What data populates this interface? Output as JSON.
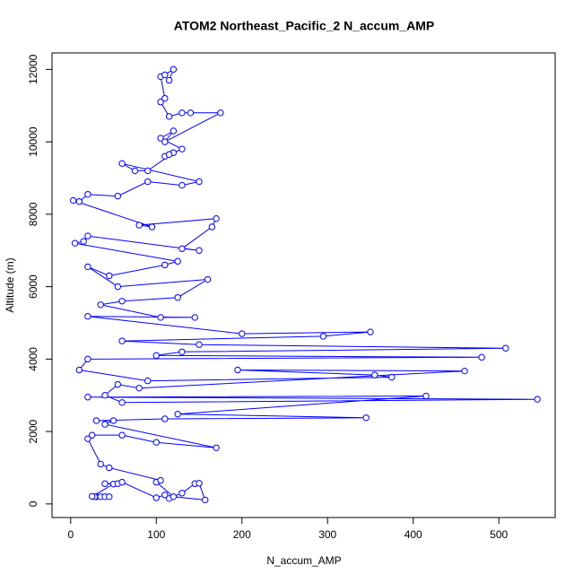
{
  "chart_data": {
    "type": "line",
    "markers": true,
    "title": "ATOM2 Northeast_Pacific_2 N_accum_AMP",
    "x_label": "N_accum_AMP",
    "y_label": "Altitude (m)",
    "x": [
      30,
      35,
      40,
      28,
      45,
      25,
      50,
      40,
      55,
      60,
      100,
      110,
      115,
      130,
      145,
      150,
      157,
      120,
      100,
      105,
      45,
      35,
      20,
      25,
      60,
      100,
      170,
      40,
      50,
      30,
      110,
      345,
      125,
      415,
      20,
      545,
      60,
      40,
      55,
      80,
      460,
      195,
      355,
      375,
      90,
      10,
      20,
      480,
      100,
      130,
      508,
      150,
      60,
      295,
      350,
      200,
      20,
      145,
      105,
      35,
      60,
      125,
      160,
      55,
      20,
      45,
      110,
      125,
      5,
      15,
      20,
      150,
      130,
      165,
      170,
      80,
      95,
      3,
      10,
      20,
      55,
      90,
      130,
      150,
      60,
      75,
      90,
      120,
      110,
      115,
      130,
      105,
      120,
      110,
      175,
      140,
      130,
      115,
      105,
      110,
      105,
      110,
      120,
      115
    ],
    "series": [
      {
        "color": "#0000ff",
        "values": [
          200,
          200,
          200,
          200,
          200,
          210,
          550,
          560,
          560,
          600,
          170,
          250,
          150,
          300,
          560,
          570,
          110,
          200,
          600,
          650,
          1000,
          1100,
          1800,
          1900,
          1900,
          1700,
          1550,
          2200,
          2300,
          2300,
          2350,
          2380,
          2480,
          2980,
          2950,
          2890,
          2800,
          3000,
          3300,
          3200,
          3670,
          3700,
          3560,
          3500,
          3400,
          3700,
          4000,
          4050,
          4100,
          4200,
          4300,
          4400,
          4500,
          4630,
          4750,
          4700,
          5180,
          5150,
          5150,
          5500,
          5600,
          5700,
          6200,
          6000,
          6550,
          6300,
          6600,
          6700,
          7200,
          7250,
          7400,
          7000,
          7050,
          7650,
          7880,
          7700,
          7650,
          8380,
          8350,
          8550,
          8500,
          8900,
          8800,
          8900,
          9400,
          9200,
          9200,
          9700,
          9600,
          9650,
          9800,
          10100,
          10300,
          10000,
          10800,
          10800,
          10800,
          10700,
          11100,
          11200,
          11800,
          11850,
          12000,
          11700
        ]
      }
    ],
    "xlim": [
      -21.8,
      565.8
    ],
    "xticks": [
      0,
      100,
      200,
      300,
      400,
      500
    ],
    "ylim": [
      -375,
      12455
    ],
    "yticks": [
      0,
      2000,
      4000,
      6000,
      8000,
      10000,
      12000
    ]
  }
}
